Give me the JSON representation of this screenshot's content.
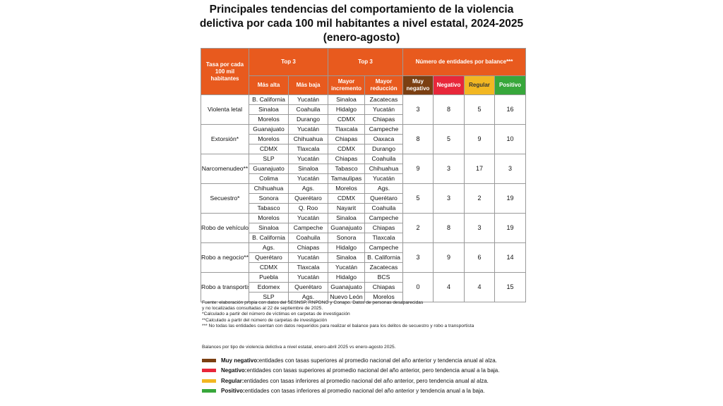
{
  "title": "Principales tendencias del comportamiento de la violencia\ndelictiva por cada 100 mil habitantes a nivel estatal, 2024-2025\n(enero-agosto)",
  "header": {
    "rate": "Tasa por cada 100 mil habitantes",
    "top3_a": "Top 3",
    "top3_b": "Top 3",
    "balance": "Número de entidades por balance***",
    "mas_alta": "Más alta",
    "mas_baja": "Más baja",
    "mayor_incremento": "Mayor incremento",
    "mayor_reduccion": "Mayor reducción",
    "muy_negativo": "Muy negativo",
    "negativo": "Negativo",
    "regular": "Regular",
    "positivo": "Positivo"
  },
  "colors": {
    "header": "#e85a1e",
    "muy_negativo": "#7b3f12",
    "negativo": "#e8273a",
    "regular": "#f2b722",
    "positivo": "#37a73b"
  },
  "rows": [
    {
      "crime": "Violenta letal",
      "alta": [
        "B. California",
        "Sinaloa",
        "Morelos"
      ],
      "baja": [
        "Yucatán",
        "Coahuila",
        "Durango"
      ],
      "incremento": [
        "Sinaloa",
        "Hidalgo",
        "CDMX"
      ],
      "reduccion": [
        "Zacatecas",
        "Yucatán",
        "Chiapas"
      ],
      "muy_negativo": "3",
      "negativo": "8",
      "regular": "5",
      "positivo": "16"
    },
    {
      "crime": "Extorsión*",
      "alta": [
        "Guanajuato",
        "Morelos",
        "CDMX"
      ],
      "baja": [
        "Yucatán",
        "Chihuahua",
        "Tlaxcala"
      ],
      "incremento": [
        "Tlaxcala",
        "Chiapas",
        "CDMX"
      ],
      "reduccion": [
        "Campeche",
        "Oaxaca",
        "Durango"
      ],
      "muy_negativo": "8",
      "negativo": "5",
      "regular": "9",
      "positivo": "10"
    },
    {
      "crime": "Narcomenudeo**",
      "alta": [
        "SLP",
        "Guanajuato",
        "Colima"
      ],
      "baja": [
        "Yucatán",
        "Sinaloa",
        "Yucatán"
      ],
      "incremento": [
        "Chiapas",
        "Tabasco",
        "Tamaulipas"
      ],
      "reduccion": [
        "Coahuila",
        "Chihuahua",
        "Yucatán"
      ],
      "muy_negativo": "9",
      "negativo": "3",
      "regular": "17",
      "positivo": "3"
    },
    {
      "crime": "Secuestro*",
      "alta": [
        "Chihuahua",
        "Sonora",
        "Tabasco"
      ],
      "baja": [
        "Ags.",
        "Querétaro",
        "Q. Roo"
      ],
      "incremento": [
        "Morelos",
        "CDMX",
        "Nayarit"
      ],
      "reduccion": [
        "Ags.",
        "Querétaro",
        "Coahuila"
      ],
      "muy_negativo": "5",
      "negativo": "3",
      "regular": "2",
      "positivo": "19"
    },
    {
      "crime": "Robo de vehículo**",
      "alta": [
        "Morelos",
        "Sinaloa",
        "B. California"
      ],
      "baja": [
        "Yucatán",
        "Campeche",
        "Coahuila"
      ],
      "incremento": [
        "Sinaloa",
        "Guanajuato",
        "Sonora"
      ],
      "reduccion": [
        "Campeche",
        "Chiapas",
        "Tlaxcala"
      ],
      "muy_negativo": "2",
      "negativo": "8",
      "regular": "3",
      "positivo": "19"
    },
    {
      "crime": "Robo a negocio**",
      "alta": [
        "Ags.",
        "Querétaro",
        "CDMX"
      ],
      "baja": [
        "Chiapas",
        "Yucatán",
        "Tlaxcala"
      ],
      "incremento": [
        "Hidalgo",
        "Sinaloa",
        "Yucatán"
      ],
      "reduccion": [
        "Campeche",
        "B. California",
        "Zacatecas"
      ],
      "muy_negativo": "3",
      "negativo": "9",
      "regular": "6",
      "positivo": "14"
    },
    {
      "crime": "Robo a transportista***",
      "alta": [
        "Puebla",
        "Edomex",
        "SLP"
      ],
      "baja": [
        "Yucatán",
        "Querétaro",
        "Ags."
      ],
      "incremento": [
        "Hidalgo",
        "Guanajuato",
        "Nuevo León"
      ],
      "reduccion": [
        "BCS",
        "Chiapas",
        "Morelos"
      ],
      "muy_negativo": "0",
      "negativo": "4",
      "regular": "4",
      "positivo": "15"
    }
  ],
  "notes": [
    "Fuente: elaboración propia con datos del SESNSP, RNPDNO y Conapo. Datos de personas desaparecidas",
    "y no localizadas consultadas al 22 de septiembre de 2025.",
    "*Calculado a partir del número de víctimas en carpetas de investigación",
    "**Calculado a partir del número de carpetas de investigación",
    "*** No todas las entidades cuentan con datos requeridos para realizar el balance para los delitos de secuestro y robo a transportista"
  ],
  "balances_note": "Balances por tipo de violencia delictiva a nivel estatal, enero-abril 2025 vs enero-agosto 2025.",
  "legend": [
    {
      "label": "Muy negativo:",
      "text": " entidades con tasas superiores al promedio nacional del año anterior y tendencia anual al alza.",
      "color": "#7b3f12"
    },
    {
      "label": "Negativo:",
      "text": " entidades con tasas superiores al promedio nacional del año anterior, pero tendencia anual a la baja.",
      "color": "#e8273a"
    },
    {
      "label": "Regular:",
      "text": " entidades con tasas inferiores al promedio nacional del año anterior, pero tendencia anual al alza.",
      "color": "#f2b722"
    },
    {
      "label": "Positivo:",
      "text": " entidades con tasas inferiores al promedio nacional del año anterior y tendencia anual a la baja.",
      "color": "#37a73b"
    }
  ]
}
